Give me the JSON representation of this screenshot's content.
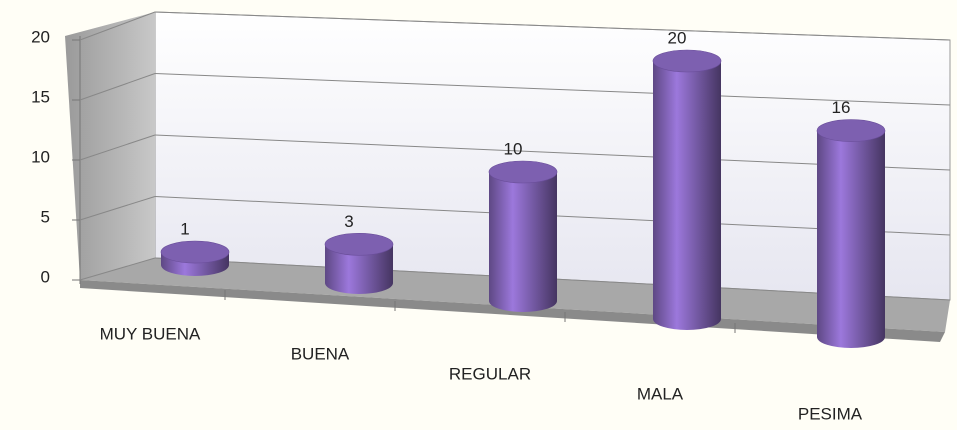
{
  "chart_data": {
    "type": "bar3d",
    "categories": [
      "MUY BUENA",
      "BUENA",
      "REGULAR",
      "MALA",
      "PESIMA"
    ],
    "values": [
      1,
      3,
      10,
      20,
      16
    ],
    "color": "#7d60b0",
    "ylim": [
      0,
      20
    ],
    "yticks": [
      0,
      5,
      10,
      15,
      20
    ],
    "grid": true
  }
}
